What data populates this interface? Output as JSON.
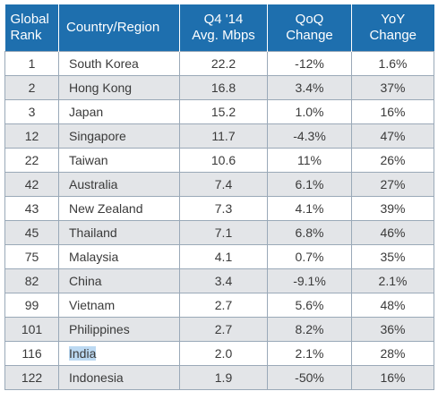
{
  "table": {
    "headers": {
      "rank": "Global\nRank",
      "country": "Country/Region",
      "speed": "Q4 '14\nAvg. Mbps",
      "qoq": "QoQ\nChange",
      "yoy": "YoY\nChange"
    },
    "rows": [
      {
        "rank": "1",
        "country": "South Korea",
        "speed": "22.2",
        "qoq": "-12%",
        "yoy": "1.6%"
      },
      {
        "rank": "2",
        "country": "Hong Kong",
        "speed": "16.8",
        "qoq": "3.4%",
        "yoy": "37%"
      },
      {
        "rank": "3",
        "country": "Japan",
        "speed": "15.2",
        "qoq": "1.0%",
        "yoy": "16%"
      },
      {
        "rank": "12",
        "country": "Singapore",
        "speed": "11.7",
        "qoq": "-4.3%",
        "yoy": "47%"
      },
      {
        "rank": "22",
        "country": "Taiwan",
        "speed": "10.6",
        "qoq": "11%",
        "yoy": "26%"
      },
      {
        "rank": "42",
        "country": "Australia",
        "speed": "7.4",
        "qoq": "6.1%",
        "yoy": "27%"
      },
      {
        "rank": "43",
        "country": "New Zealand",
        "speed": "7.3",
        "qoq": "4.1%",
        "yoy": "39%"
      },
      {
        "rank": "45",
        "country": "Thailand",
        "speed": "7.1",
        "qoq": "6.8%",
        "yoy": "46%"
      },
      {
        "rank": "75",
        "country": "Malaysia",
        "speed": "4.1",
        "qoq": "0.7%",
        "yoy": "35%"
      },
      {
        "rank": "82",
        "country": "China",
        "speed": "3.4",
        "qoq": "-9.1%",
        "yoy": "2.1%"
      },
      {
        "rank": "99",
        "country": "Vietnam",
        "speed": "2.7",
        "qoq": "5.6%",
        "yoy": "48%"
      },
      {
        "rank": "101",
        "country": "Philippines",
        "speed": "2.7",
        "qoq": "8.2%",
        "yoy": "36%"
      },
      {
        "rank": "116",
        "country": "India",
        "speed": "2.0",
        "qoq": "2.1%",
        "yoy": "28%",
        "highlighted": true
      },
      {
        "rank": "122",
        "country": "Indonesia",
        "speed": "1.9",
        "qoq": "-50%",
        "yoy": "16%"
      }
    ]
  },
  "colors": {
    "header_bg": "#1e6fae",
    "header_text": "#ffffff",
    "stripe": "#e3e5e8",
    "text_highlight": "#bcd9f2"
  }
}
